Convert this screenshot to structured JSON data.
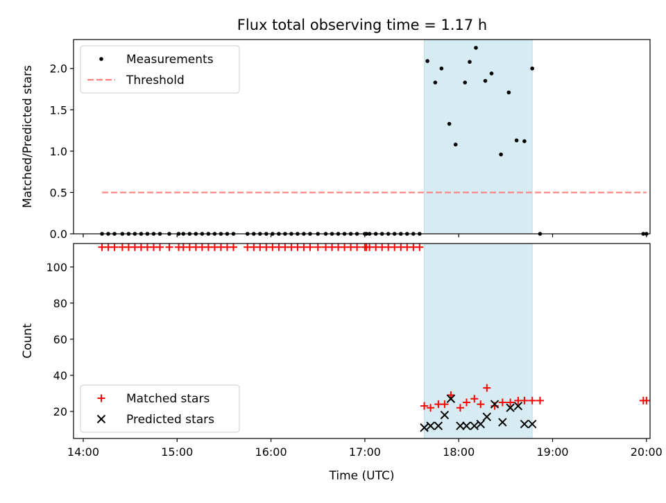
{
  "title": "Flux total observing time = 1.17 h",
  "chart_data": [
    {
      "type": "scatter",
      "ylabel": "Matched/Predicted stars",
      "ylim": [
        0,
        2.35
      ],
      "xlim": [
        "14:00",
        "20:00"
      ],
      "yticks": [
        0.0,
        0.5,
        1.0,
        1.5,
        2.0
      ],
      "ytick_labels": [
        "0.0",
        "0.5",
        "1.0",
        "1.5",
        "2.0"
      ],
      "grid": false,
      "legend_position": "top-left",
      "highlight_span": [
        "17:38",
        "18:47"
      ],
      "series": [
        {
          "name": "Measurements",
          "marker": "dot",
          "color": "#000000",
          "x": [
            "14:12",
            "14:16",
            "14:20",
            "14:25",
            "14:29",
            "14:33",
            "14:37",
            "14:41",
            "14:45",
            "14:49",
            "14:55",
            "15:01",
            "15:04",
            "15:08",
            "15:12",
            "15:16",
            "15:20",
            "15:24",
            "15:28",
            "15:32",
            "15:36",
            "15:45",
            "15:49",
            "15:53",
            "15:57",
            "16:01",
            "16:05",
            "16:09",
            "16:13",
            "16:17",
            "16:21",
            "16:25",
            "16:30",
            "16:35",
            "16:39",
            "16:43",
            "16:47",
            "16:51",
            "16:55",
            "17:00",
            "17:01",
            "17:03",
            "17:07",
            "17:11",
            "17:15",
            "17:19",
            "17:23",
            "17:27",
            "17:31",
            "17:35",
            "17:40",
            "17:45",
            "17:49",
            "17:54",
            "17:58",
            "18:04",
            "18:07",
            "18:11",
            "18:17",
            "18:21",
            "18:27",
            "18:32",
            "18:37",
            "18:42",
            "18:47",
            "18:52",
            "19:58",
            "20:00"
          ],
          "y": [
            0,
            0,
            0,
            0,
            0,
            0,
            0,
            0,
            0,
            0,
            0,
            0,
            0,
            0,
            0,
            0,
            0,
            0,
            0,
            0,
            0,
            0,
            0,
            0,
            0,
            0,
            0,
            0,
            0,
            0,
            0,
            0,
            0,
            0,
            0,
            0,
            0,
            0,
            0,
            0,
            0,
            0,
            0,
            0,
            0,
            0,
            0,
            0,
            0,
            0,
            2.09,
            1.83,
            2.0,
            1.33,
            1.08,
            1.83,
            2.08,
            2.25,
            1.85,
            1.94,
            0.96,
            1.71,
            1.13,
            1.12,
            2.0,
            0,
            0,
            0
          ]
        },
        {
          "name": "Threshold",
          "line_style": "dashed",
          "color": "#ff7f7f",
          "x": [
            "14:12",
            "20:00"
          ],
          "y": [
            0.5,
            0.5
          ]
        }
      ]
    },
    {
      "type": "scatter",
      "xlabel": "Time (UTC)",
      "ylabel": "Count",
      "ylim": [
        5,
        113
      ],
      "xlim": [
        "14:00",
        "20:00"
      ],
      "xticks": [
        "14:00",
        "15:00",
        "16:00",
        "17:00",
        "18:00",
        "19:00",
        "20:00"
      ],
      "xtick_labels": [
        "14:00",
        "15:00",
        "16:00",
        "17:00",
        "18:00",
        "19:00",
        "20:00"
      ],
      "yticks": [
        20,
        40,
        60,
        80,
        100
      ],
      "ytick_labels": [
        "20",
        "40",
        "60",
        "80",
        "100"
      ],
      "grid": false,
      "legend_position": "bottom-left",
      "highlight_span": [
        "17:38",
        "18:47"
      ],
      "series": [
        {
          "name": "Matched stars",
          "marker": "plus",
          "color": "#ff0000",
          "x": [
            "14:12",
            "14:16",
            "14:20",
            "14:25",
            "14:29",
            "14:33",
            "14:37",
            "14:41",
            "14:45",
            "14:49",
            "14:55",
            "15:01",
            "15:04",
            "15:08",
            "15:12",
            "15:16",
            "15:20",
            "15:24",
            "15:28",
            "15:32",
            "15:36",
            "15:45",
            "15:49",
            "15:53",
            "15:57",
            "16:01",
            "16:05",
            "16:09",
            "16:13",
            "16:17",
            "16:21",
            "16:25",
            "16:30",
            "16:35",
            "16:39",
            "16:43",
            "16:47",
            "16:51",
            "16:55",
            "17:00",
            "17:01",
            "17:03",
            "17:07",
            "17:11",
            "17:15",
            "17:19",
            "17:23",
            "17:27",
            "17:31",
            "17:35",
            "17:38",
            "17:42",
            "17:47",
            "17:51",
            "17:55",
            "18:01",
            "18:05",
            "18:10",
            "18:14",
            "18:18",
            "18:23",
            "18:28",
            "18:33",
            "18:38",
            "18:42",
            "18:47",
            "18:52",
            "19:58",
            "20:00"
          ],
          "y": [
            111,
            111,
            111,
            111,
            111,
            111,
            111,
            111,
            111,
            111,
            111,
            111,
            111,
            111,
            111,
            111,
            111,
            111,
            111,
            111,
            111,
            111,
            111,
            111,
            111,
            111,
            111,
            111,
            111,
            111,
            111,
            111,
            111,
            111,
            111,
            111,
            111,
            111,
            111,
            111,
            111,
            111,
            111,
            111,
            111,
            111,
            111,
            111,
            111,
            111,
            23,
            22,
            24,
            24,
            29,
            22,
            25,
            27,
            24,
            33,
            23,
            25,
            25,
            26,
            26,
            26,
            26,
            26,
            26
          ]
        },
        {
          "name": "Predicted stars",
          "marker": "x",
          "color": "#000000",
          "x": [
            "17:38",
            "17:42",
            "17:47",
            "17:51",
            "17:55",
            "18:01",
            "18:05",
            "18:10",
            "18:14",
            "18:18",
            "18:23",
            "18:28",
            "18:33",
            "18:38",
            "18:42",
            "18:47"
          ],
          "y": [
            11,
            12,
            12,
            18,
            27,
            12,
            12,
            12,
            13,
            17,
            24,
            14,
            22,
            23,
            13,
            13
          ]
        }
      ]
    }
  ]
}
